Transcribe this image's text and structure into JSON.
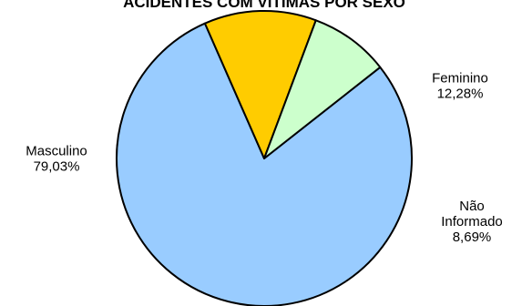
{
  "chart_data": {
    "type": "pie",
    "title": "ACIDENTES COM VÍTIMAS POR SEXO",
    "slices": [
      {
        "label_lines": [
          "Masculino",
          "79,03%"
        ],
        "value": 79.03,
        "color": "#99CCFF"
      },
      {
        "label_lines": [
          "Feminino",
          "12,28%"
        ],
        "value": 12.28,
        "color": "#FFCC00"
      },
      {
        "label_lines": [
          "Não",
          "Informado",
          "8,69%"
        ],
        "value": 8.69,
        "color": "#CCFFCC"
      }
    ]
  }
}
